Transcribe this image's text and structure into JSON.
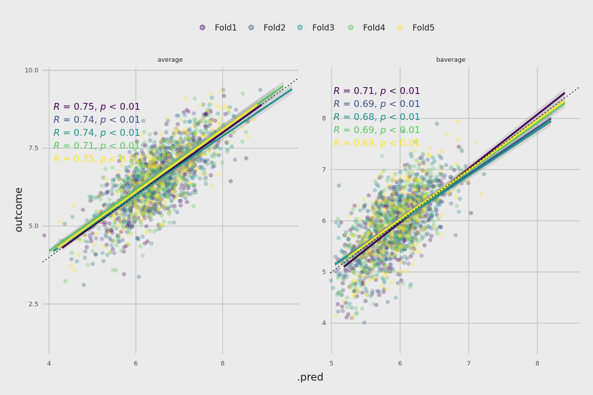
{
  "legend": {
    "items": [
      {
        "label": "Fold1",
        "color": "#440154"
      },
      {
        "label": "Fold2",
        "color": "#3b528b"
      },
      {
        "label": "Fold3",
        "color": "#21908c"
      },
      {
        "label": "Fold4",
        "color": "#5dc863"
      },
      {
        "label": "Fold5",
        "color": "#fde725"
      }
    ]
  },
  "axes": {
    "xlabel": ".pred",
    "ylabel": "outcome"
  },
  "chart_data": [
    {
      "type": "scatter",
      "panel": "average",
      "xlabel": ".pred",
      "ylabel": "outcome",
      "xlim": [
        3.85,
        9.75
      ],
      "ylim": [
        0.9,
        10.1
      ],
      "xticks": [
        4,
        6,
        8
      ],
      "xtick_labels": [
        "4",
        "6",
        "8"
      ],
      "yticks": [
        2.5,
        5.0,
        7.5,
        10.0
      ],
      "ytick_labels": [
        "2.5",
        "5.0",
        "7.5",
        "10.0"
      ],
      "cloud": {
        "center_x": 6.5,
        "center_y": 6.5,
        "sd_x": 0.75,
        "sd_y": 1.0,
        "corr": 0.74
      },
      "series": [
        {
          "name": "Fold1",
          "color": "#440154",
          "label": "R = 0.75, p < 0.01",
          "r": "0.75",
          "fit": [
            [
              4.3,
              4.3
            ],
            [
              8.9,
              8.9
            ]
          ]
        },
        {
          "name": "Fold2",
          "color": "#3b528b",
          "label": "R = 0.74, p < 0.01",
          "r": "0.74",
          "fit": [
            [
              4.1,
              4.3
            ],
            [
              9.2,
              9.3
            ]
          ]
        },
        {
          "name": "Fold3",
          "color": "#21908c",
          "label": "R = 0.74, p < 0.01",
          "r": "0.74",
          "fit": [
            [
              4.1,
              4.2
            ],
            [
              9.6,
              9.4
            ]
          ]
        },
        {
          "name": "Fold4",
          "color": "#5dc863",
          "label": "R = 0.71, p < 0.01",
          "r": "0.71",
          "fit": [
            [
              4.0,
              4.2
            ],
            [
              9.4,
              9.5
            ]
          ]
        },
        {
          "name": "Fold5",
          "color": "#fde725",
          "label": "R = 0.75, p < 0.01",
          "r": "0.75",
          "fit": [
            [
              4.2,
              4.3
            ],
            [
              8.8,
              8.9
            ]
          ]
        }
      ]
    },
    {
      "type": "scatter",
      "panel": "baverage",
      "xlabel": ".pred",
      "ylabel": "outcome",
      "xlim": [
        4.98,
        8.62
      ],
      "ylim": [
        3.4,
        9.0
      ],
      "xticks": [
        5,
        6,
        7,
        8
      ],
      "xtick_labels": [
        "5",
        "6",
        "7",
        "8"
      ],
      "yticks": [
        4,
        5,
        6,
        7,
        8
      ],
      "ytick_labels": [
        "4",
        "5",
        "6",
        "7",
        "8"
      ],
      "cloud": {
        "center_x": 5.9,
        "center_y": 5.9,
        "sd_x": 0.4,
        "sd_y": 0.65,
        "corr": 0.69
      },
      "series": [
        {
          "name": "Fold1",
          "color": "#440154",
          "label": "R = 0.71, p < 0.01",
          "r": "0.71",
          "fit": [
            [
              5.18,
              5.1
            ],
            [
              8.4,
              8.5
            ]
          ]
        },
        {
          "name": "Fold2",
          "color": "#3b528b",
          "label": "R = 0.69, p < 0.01",
          "r": "0.69",
          "fit": [
            [
              5.05,
              5.15
            ],
            [
              8.2,
              8.0
            ]
          ]
        },
        {
          "name": "Fold3",
          "color": "#21908c",
          "label": "R = 0.68, p < 0.01",
          "r": "0.68",
          "fit": [
            [
              5.05,
              5.15
            ],
            [
              8.2,
              7.95
            ]
          ]
        },
        {
          "name": "Fold4",
          "color": "#5dc863",
          "label": "R = 0.69, p < 0.01",
          "r": "0.69",
          "fit": [
            [
              5.2,
              5.25
            ],
            [
              8.4,
              8.3
            ]
          ]
        },
        {
          "name": "Fold5",
          "color": "#fde725",
          "label": "R = 0.69, p < 0.01",
          "r": "0.69",
          "fit": [
            [
              5.25,
              5.3
            ],
            [
              8.4,
              8.35
            ]
          ]
        }
      ]
    }
  ]
}
